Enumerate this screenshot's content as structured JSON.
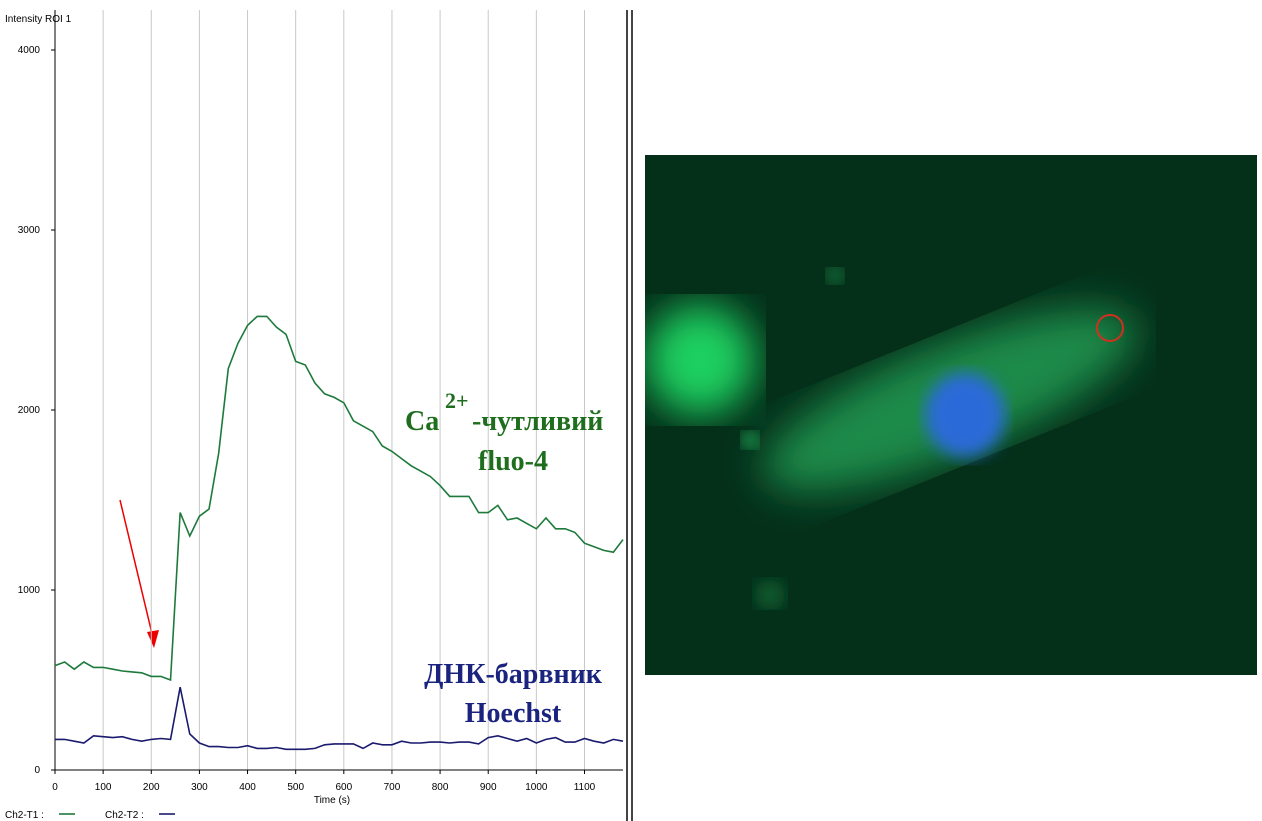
{
  "chart_data": {
    "type": "line",
    "ylabel": "Intensity ROI 1",
    "xlabel": "Time (s)",
    "x": [
      0,
      20,
      40,
      60,
      80,
      100,
      120,
      140,
      160,
      180,
      200,
      220,
      240,
      260,
      280,
      300,
      320,
      340,
      360,
      380,
      400,
      420,
      440,
      460,
      480,
      500,
      520,
      540,
      560,
      580,
      600,
      620,
      640,
      660,
      680,
      700,
      720,
      740,
      760,
      780,
      800,
      820,
      840,
      860,
      880,
      900,
      920,
      940,
      960,
      980,
      1000,
      1020,
      1040,
      1060,
      1080,
      1100,
      1120,
      1140,
      1160,
      1180
    ],
    "series": [
      {
        "name": "Ch2-T1 :",
        "color": "#1e7a3c",
        "values": [
          580,
          600,
          560,
          600,
          570,
          570,
          560,
          550,
          545,
          540,
          520,
          520,
          500,
          1430,
          1300,
          1410,
          1450,
          1760,
          2230,
          2370,
          2470,
          2520,
          2520,
          2460,
          2420,
          2270,
          2250,
          2150,
          2090,
          2070,
          2040,
          1940,
          1910,
          1880,
          1800,
          1770,
          1730,
          1690,
          1660,
          1630,
          1580,
          1520,
          1520,
          1520,
          1430,
          1430,
          1470,
          1390,
          1400,
          1370,
          1340,
          1400,
          1340,
          1340,
          1320,
          1260,
          1240,
          1220,
          1210,
          1280
        ]
      },
      {
        "name": "Ch2-T2 :",
        "color": "#1a1a6e",
        "values": [
          170,
          170,
          160,
          150,
          190,
          185,
          180,
          185,
          170,
          160,
          170,
          175,
          170,
          460,
          200,
          150,
          130,
          130,
          125,
          125,
          135,
          120,
          120,
          125,
          115,
          115,
          115,
          120,
          140,
          145,
          145,
          145,
          120,
          150,
          140,
          140,
          160,
          150,
          150,
          155,
          155,
          150,
          155,
          155,
          145,
          180,
          190,
          175,
          160,
          175,
          150,
          170,
          180,
          155,
          155,
          175,
          160,
          150,
          170,
          160
        ]
      }
    ],
    "xlim": [
      0,
      1180
    ],
    "ylim": [
      0,
      4200
    ],
    "xticks": [
      0,
      100,
      200,
      300,
      400,
      500,
      600,
      700,
      800,
      900,
      1000,
      1100
    ],
    "yticks": [
      0,
      1000,
      2000,
      3000,
      4000
    ],
    "grid": true,
    "annotations": {
      "ca": "Ca",
      "charge": "2+",
      "sensitive": "-чутливий",
      "fluo": "fluo-4",
      "dna": "ДНК-барвник",
      "hoechst": "Hoechst"
    }
  }
}
